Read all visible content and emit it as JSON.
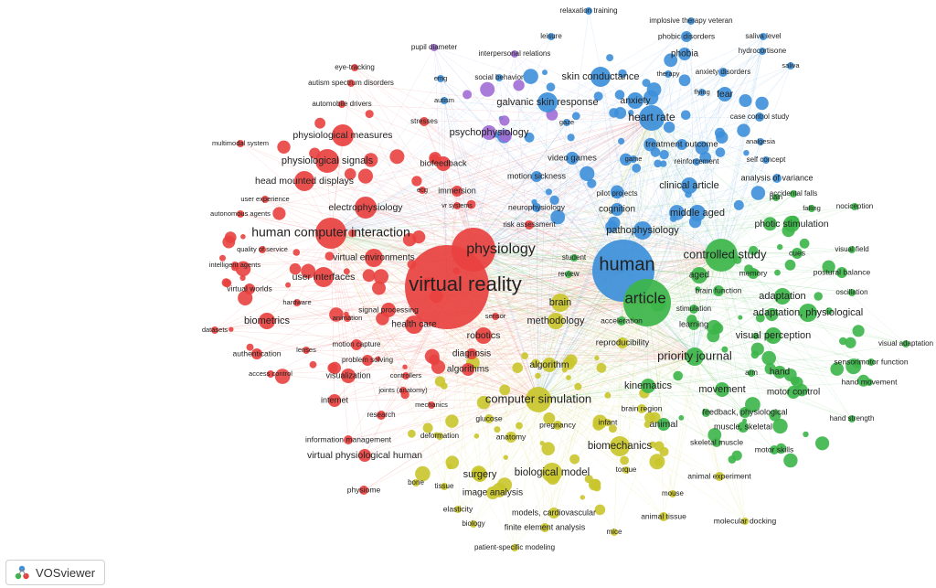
{
  "app": {
    "name": "VOSviewer"
  },
  "colors": {
    "red": "#e8413f",
    "green": "#3cb549",
    "blue": "#3d8fd9",
    "yellow": "#c9c52c",
    "purple": "#a16dd4"
  },
  "nodes": [
    {
      "label": "virtual reality",
      "cluster": "red"
    },
    {
      "label": "physiology",
      "cluster": "red"
    },
    {
      "label": "human computer interaction",
      "cluster": "red"
    },
    {
      "label": "physiological signals",
      "cluster": "red"
    },
    {
      "label": "physiological measures",
      "cluster": "red"
    },
    {
      "label": "head mounted displays",
      "cluster": "red"
    },
    {
      "label": "electrophysiology",
      "cluster": "red"
    },
    {
      "label": "virtual environments",
      "cluster": "red"
    },
    {
      "label": "user interfaces",
      "cluster": "red"
    },
    {
      "label": "biometrics",
      "cluster": "red"
    },
    {
      "label": "virtual worlds",
      "cluster": "red"
    },
    {
      "label": "signal processing",
      "cluster": "red"
    },
    {
      "label": "health care",
      "cluster": "red"
    },
    {
      "label": "robotics",
      "cluster": "red"
    },
    {
      "label": "motion capture",
      "cluster": "red"
    },
    {
      "label": "problem solving",
      "cluster": "red"
    },
    {
      "label": "visualization",
      "cluster": "red"
    },
    {
      "label": "internet",
      "cluster": "red"
    },
    {
      "label": "authentication",
      "cluster": "red"
    },
    {
      "label": "access control",
      "cluster": "red"
    },
    {
      "label": "multimodal system",
      "cluster": "red"
    },
    {
      "label": "autonomous agents",
      "cluster": "red"
    },
    {
      "label": "user experience",
      "cluster": "red"
    },
    {
      "label": "quality of service",
      "cluster": "red"
    },
    {
      "label": "intelligent agents",
      "cluster": "red"
    },
    {
      "label": "datasets",
      "cluster": "red"
    },
    {
      "label": "hardware",
      "cluster": "red"
    },
    {
      "label": "animation",
      "cluster": "red"
    },
    {
      "label": "lenses",
      "cluster": "red"
    },
    {
      "label": "controllers",
      "cluster": "red"
    },
    {
      "label": "joints (anatomy)",
      "cluster": "red"
    },
    {
      "label": "mechanics",
      "cluster": "red"
    },
    {
      "label": "research",
      "cluster": "red"
    },
    {
      "label": "information management",
      "cluster": "red"
    },
    {
      "label": "virtual physiological human",
      "cluster": "red"
    },
    {
      "label": "biofeedback",
      "cluster": "red"
    },
    {
      "label": "stresses",
      "cluster": "red"
    },
    {
      "label": "autism spectrum disorders",
      "cluster": "red"
    },
    {
      "label": "automobile drivers",
      "cluster": "red"
    },
    {
      "label": "eye-tracking",
      "cluster": "red"
    },
    {
      "label": "ecg",
      "cluster": "red"
    },
    {
      "label": "immersion",
      "cluster": "red"
    },
    {
      "label": "vr systems",
      "cluster": "red"
    },
    {
      "label": "risk assessment",
      "cluster": "red"
    },
    {
      "label": "diagnosis",
      "cluster": "red"
    },
    {
      "label": "algorithms",
      "cluster": "red"
    },
    {
      "label": "sensor",
      "cluster": "red"
    },
    {
      "label": "physiome",
      "cluster": "red"
    },
    {
      "label": "human",
      "cluster": "blue"
    },
    {
      "label": "skin conductance",
      "cluster": "blue"
    },
    {
      "label": "galvanic skin response",
      "cluster": "blue"
    },
    {
      "label": "heart rate",
      "cluster": "blue"
    },
    {
      "label": "anxiety",
      "cluster": "blue"
    },
    {
      "label": "fear",
      "cluster": "blue"
    },
    {
      "label": "phobia",
      "cluster": "blue"
    },
    {
      "label": "phobic disorders",
      "cluster": "blue"
    },
    {
      "label": "implosive therapy veteran",
      "cluster": "blue"
    },
    {
      "label": "relaxation training",
      "cluster": "blue"
    },
    {
      "label": "leisure",
      "cluster": "blue"
    },
    {
      "label": "saliva level",
      "cluster": "blue"
    },
    {
      "label": "hydrocortisone",
      "cluster": "blue"
    },
    {
      "label": "saliva",
      "cluster": "blue"
    },
    {
      "label": "anxiety disorders",
      "cluster": "blue"
    },
    {
      "label": "therapy",
      "cluster": "blue"
    },
    {
      "label": "flying",
      "cluster": "blue"
    },
    {
      "label": "case control study",
      "cluster": "blue"
    },
    {
      "label": "treatment outcome",
      "cluster": "blue"
    },
    {
      "label": "analgesia",
      "cluster": "blue"
    },
    {
      "label": "reinforcement",
      "cluster": "blue"
    },
    {
      "label": "self concept",
      "cluster": "blue"
    },
    {
      "label": "analysis of variance",
      "cluster": "blue"
    },
    {
      "label": "video games",
      "cluster": "blue"
    },
    {
      "label": "game",
      "cluster": "blue"
    },
    {
      "label": "motion sickness",
      "cluster": "blue"
    },
    {
      "label": "clinical article",
      "cluster": "blue"
    },
    {
      "label": "pilot projects",
      "cluster": "blue"
    },
    {
      "label": "cognition",
      "cluster": "blue"
    },
    {
      "label": "middle aged",
      "cluster": "blue"
    },
    {
      "label": "pathophysiology",
      "cluster": "blue"
    },
    {
      "label": "neurophysiology",
      "cluster": "blue"
    },
    {
      "label": "social behavior",
      "cluster": "blue"
    },
    {
      "label": "emg",
      "cluster": "blue"
    },
    {
      "label": "autism",
      "cluster": "blue"
    },
    {
      "label": "gaze",
      "cluster": "blue"
    },
    {
      "label": "psychophysiology",
      "cluster": "purple"
    },
    {
      "label": "pupil diameter",
      "cluster": "purple"
    },
    {
      "label": "interpersonal relations",
      "cluster": "purple"
    },
    {
      "label": "article",
      "cluster": "green"
    },
    {
      "label": "controlled study",
      "cluster": "green"
    },
    {
      "label": "priority journal",
      "cluster": "green"
    },
    {
      "label": "adaptation",
      "cluster": "green"
    },
    {
      "label": "adaptation, physiological",
      "cluster": "green"
    },
    {
      "label": "visual perception",
      "cluster": "green"
    },
    {
      "label": "photic stimulation",
      "cluster": "green"
    },
    {
      "label": "accidental falls",
      "cluster": "green"
    },
    {
      "label": "falling",
      "cluster": "green"
    },
    {
      "label": "nociception",
      "cluster": "green"
    },
    {
      "label": "pain",
      "cluster": "green"
    },
    {
      "label": "cues",
      "cluster": "green"
    },
    {
      "label": "visual field",
      "cluster": "green"
    },
    {
      "label": "postural balance",
      "cluster": "green"
    },
    {
      "label": "memory",
      "cluster": "green"
    },
    {
      "label": "aged",
      "cluster": "green"
    },
    {
      "label": "oscillation",
      "cluster": "green"
    },
    {
      "label": "brain function",
      "cluster": "green"
    },
    {
      "label": "stimulation",
      "cluster": "green"
    },
    {
      "label": "learning",
      "cluster": "green"
    },
    {
      "label": "visual adaptation",
      "cluster": "green"
    },
    {
      "label": "sensorimotor function",
      "cluster": "green"
    },
    {
      "label": "hand movement",
      "cluster": "green"
    },
    {
      "label": "arm",
      "cluster": "green"
    },
    {
      "label": "hand",
      "cluster": "green"
    },
    {
      "label": "movement",
      "cluster": "green"
    },
    {
      "label": "motor control",
      "cluster": "green"
    },
    {
      "label": "feedback, physiological",
      "cluster": "green"
    },
    {
      "label": "hand strength",
      "cluster": "green"
    },
    {
      "label": "muscle, skeletal",
      "cluster": "green"
    },
    {
      "label": "skeletal muscle",
      "cluster": "green"
    },
    {
      "label": "motor skills",
      "cluster": "green"
    },
    {
      "label": "animal",
      "cluster": "green"
    },
    {
      "label": "kinematics",
      "cluster": "green"
    },
    {
      "label": "acceleration",
      "cluster": "green"
    },
    {
      "label": "student",
      "cluster": "green"
    },
    {
      "label": "review",
      "cluster": "green"
    },
    {
      "label": "brain",
      "cluster": "yellow"
    },
    {
      "label": "methodology",
      "cluster": "yellow"
    },
    {
      "label": "reproducibility",
      "cluster": "yellow"
    },
    {
      "label": "algorithm",
      "cluster": "yellow"
    },
    {
      "label": "computer simulation",
      "cluster": "yellow"
    },
    {
      "label": "brain region",
      "cluster": "yellow"
    },
    {
      "label": "glucose",
      "cluster": "yellow"
    },
    {
      "label": "pregnancy",
      "cluster": "yellow"
    },
    {
      "label": "infant",
      "cluster": "yellow"
    },
    {
      "label": "anatomy",
      "cluster": "yellow"
    },
    {
      "label": "deformation",
      "cluster": "yellow"
    },
    {
      "label": "biomechanics",
      "cluster": "yellow"
    },
    {
      "label": "surgery",
      "cluster": "yellow"
    },
    {
      "label": "biological model",
      "cluster": "yellow"
    },
    {
      "label": "torque",
      "cluster": "yellow"
    },
    {
      "label": "animal experiment",
      "cluster": "yellow"
    },
    {
      "label": "bone",
      "cluster": "yellow"
    },
    {
      "label": "tissue",
      "cluster": "yellow"
    },
    {
      "label": "image analysis",
      "cluster": "yellow"
    },
    {
      "label": "mouse",
      "cluster": "yellow"
    },
    {
      "label": "elasticity",
      "cluster": "yellow"
    },
    {
      "label": "models, cardiovascular",
      "cluster": "yellow"
    },
    {
      "label": "animal tissue",
      "cluster": "yellow"
    },
    {
      "label": "molecular docking",
      "cluster": "yellow"
    },
    {
      "label": "biology",
      "cluster": "yellow"
    },
    {
      "label": "finite element analysis",
      "cluster": "yellow"
    },
    {
      "label": "mice",
      "cluster": "yellow"
    },
    {
      "label": "patient-specific modeling",
      "cluster": "yellow"
    }
  ]
}
